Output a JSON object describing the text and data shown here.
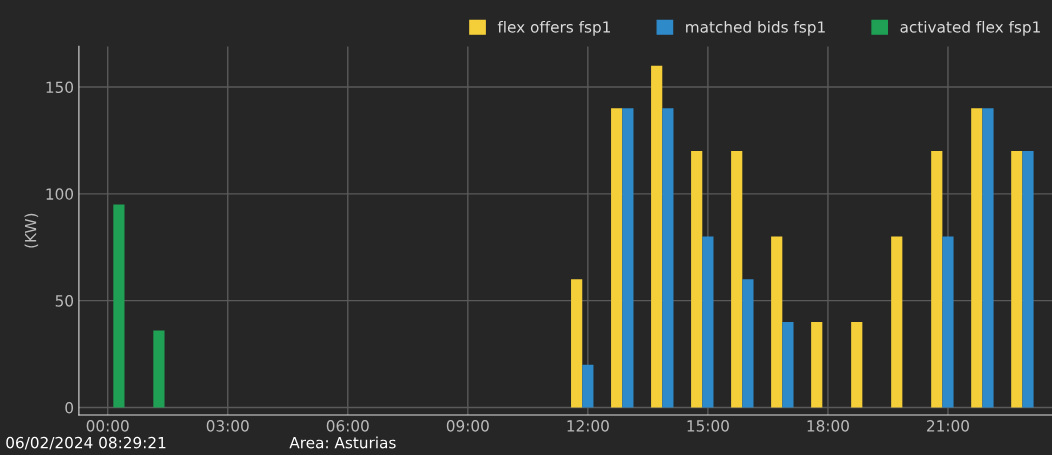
{
  "chart_data": {
    "type": "bar",
    "ylabel": "(KW)",
    "x": [
      0,
      1,
      2,
      3,
      4,
      5,
      6,
      7,
      8,
      9,
      10,
      11,
      12,
      13,
      14,
      15,
      16,
      17,
      18,
      19,
      20,
      21,
      22,
      23
    ],
    "series": [
      {
        "name": "flex offers fsp1",
        "color": "#f5cf3a",
        "values": [
          0,
          0,
          0,
          0,
          0,
          0,
          0,
          0,
          0,
          0,
          0,
          0,
          60,
          140,
          160,
          120,
          120,
          80,
          40,
          40,
          80,
          120,
          140,
          120
        ]
      },
      {
        "name": "matched bids fsp1",
        "color": "#2f8ac9",
        "values": [
          0,
          0,
          0,
          0,
          0,
          0,
          0,
          0,
          0,
          0,
          0,
          0,
          20,
          140,
          140,
          80,
          60,
          40,
          0,
          0,
          0,
          80,
          140,
          120
        ]
      },
      {
        "name": "activated flex fsp1",
        "color": "#1fa055",
        "values": [
          95,
          36,
          0,
          0,
          0,
          0,
          0,
          0,
          0,
          0,
          0,
          0,
          0,
          0,
          0,
          0,
          0,
          0,
          0,
          0,
          0,
          0,
          0,
          0
        ]
      }
    ],
    "xlim": [
      -0.72,
      23.6
    ],
    "xticks": [
      {
        "value": 0,
        "label": "00:00"
      },
      {
        "value": 3,
        "label": "03:00"
      },
      {
        "value": 6,
        "label": "06:00"
      },
      {
        "value": 9,
        "label": "09:00"
      },
      {
        "value": 12,
        "label": "12:00"
      },
      {
        "value": 15,
        "label": "15:00"
      },
      {
        "value": 18,
        "label": "18:00"
      },
      {
        "value": 21,
        "label": "21:00"
      }
    ],
    "ylim": [
      -3.5,
      169
    ],
    "yticks": [
      0,
      50,
      100,
      150
    ],
    "grid": true,
    "legend": "top right",
    "annotations": [
      "06/02/2024 08:29:21",
      "Area: Asturias"
    ]
  }
}
